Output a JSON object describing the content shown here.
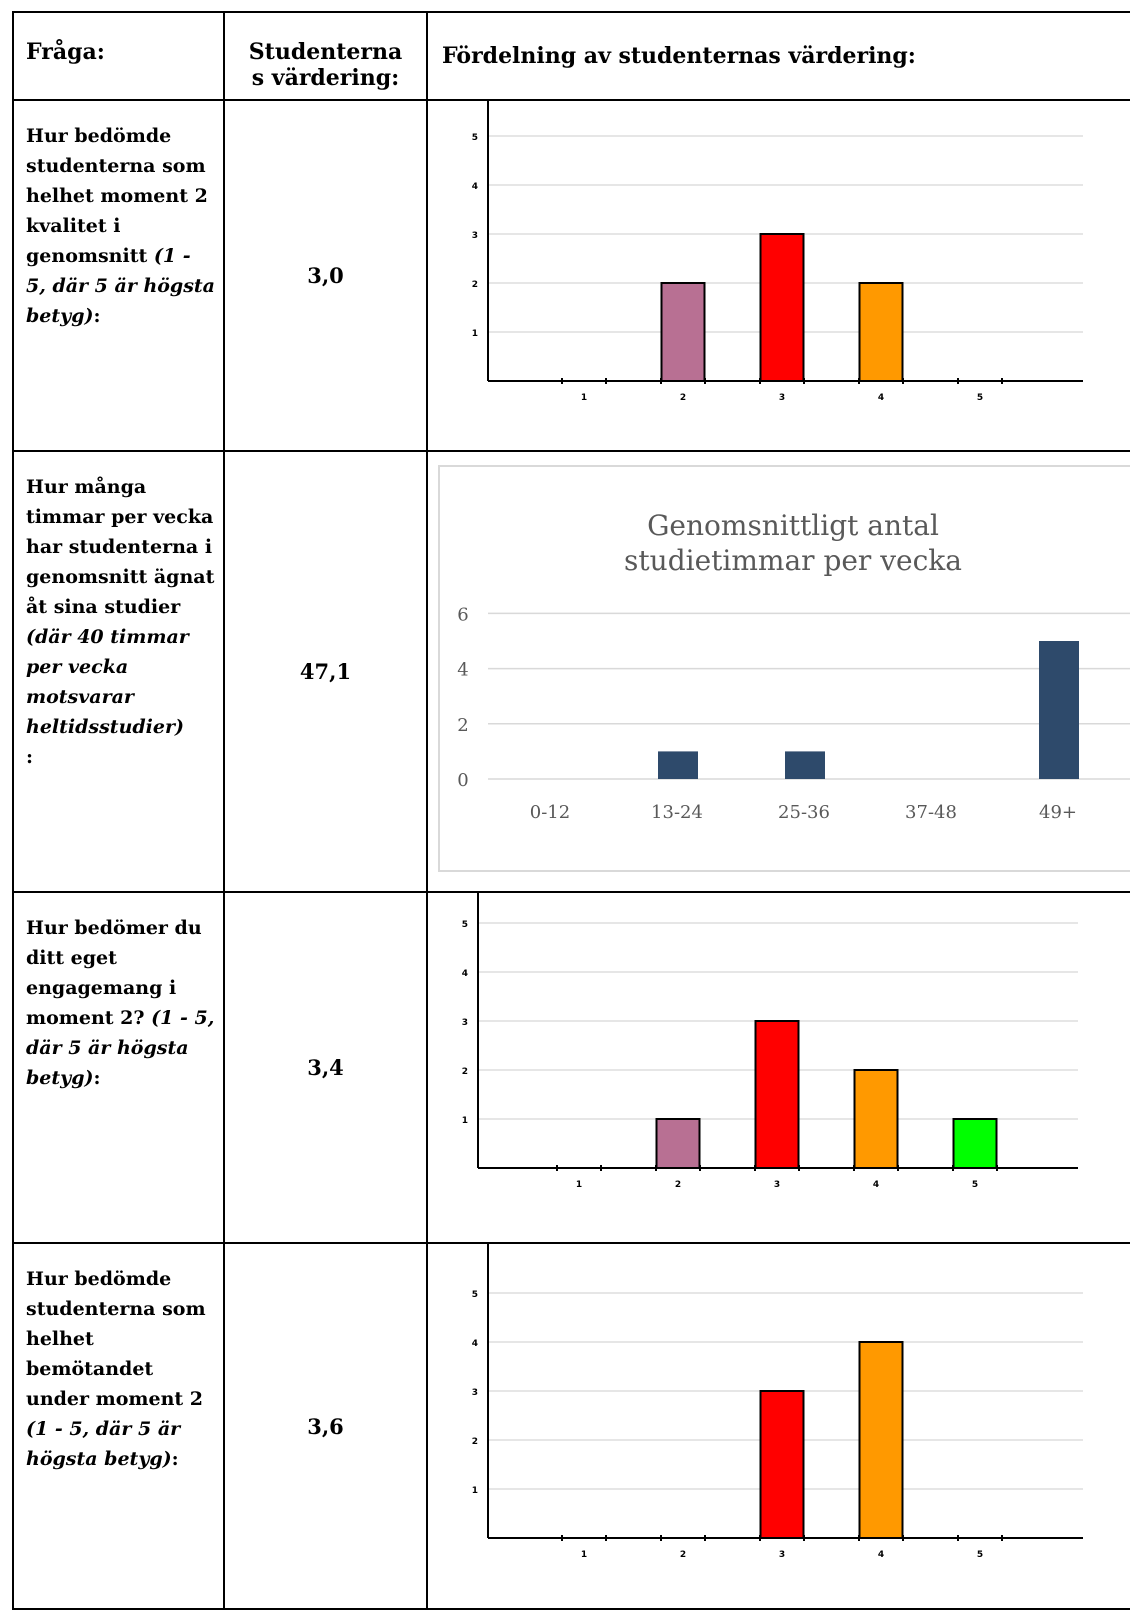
{
  "header": {
    "col_question": "Fråga:",
    "col_value_1": "Studenterna",
    "col_value_2": "s värdering:",
    "col_distribution": "Fördelning av studenternas värdering:"
  },
  "rows": [
    {
      "question_bold": "Hur bedömde studenterna som helhet moment 2 kvalitet i genomsnitt",
      "question_italic": "(1 - 5, där 5 är högsta betyg)",
      "question_end": ":",
      "value": "3,0"
    },
    {
      "question_bold": "Hur många timmar per vecka har studenterna i genomsnitt ägnat åt sina studier",
      "question_italic": "(där 40 timmar per vecka motsvarar heltidsstudier)",
      "question_end": ":",
      "value": "47,1"
    },
    {
      "question_bold": "Hur bedömer du ditt eget engagemang i moment 2?",
      "question_italic": "(1 - 5, där 5 är högsta betyg)",
      "question_end": ":",
      "value": "3,4"
    },
    {
      "question_bold": "Hur bedömde studenterna som helhet bemötandet under moment 2",
      "question_italic": "(1 - 5, där 5 är högsta betyg)",
      "question_end": ":",
      "value": "3,6"
    }
  ],
  "colors": {
    "grade_2": "#b87093",
    "grade_3": "#ff0000",
    "grade_4": "#ff9900",
    "grade_5": "#00ff00",
    "study_bar": "#2e4a6b",
    "grid": "#e6e6e6"
  },
  "chart_data": [
    {
      "type": "bar",
      "categories": [
        "1",
        "2",
        "3",
        "4",
        "5"
      ],
      "values": [
        0,
        2,
        3,
        2,
        0
      ],
      "ylim": [
        0,
        5
      ],
      "yticks": [
        "1",
        "2",
        "3",
        "4",
        "5"
      ],
      "grid": true
    },
    {
      "type": "bar",
      "title": "Genomsnittligt antal studietimmar per vecka",
      "categories": [
        "0-12",
        "13-24",
        "25-36",
        "37-48",
        "49+"
      ],
      "values": [
        0,
        1,
        1,
        0,
        5
      ],
      "ylim": [
        0,
        6
      ],
      "yticks": [
        "0",
        "2",
        "4",
        "6"
      ],
      "grid": true
    },
    {
      "type": "bar",
      "categories": [
        "1",
        "2",
        "3",
        "4",
        "5"
      ],
      "values": [
        0,
        1,
        3,
        2,
        1
      ],
      "ylim": [
        0,
        5
      ],
      "yticks": [
        "1",
        "2",
        "3",
        "4",
        "5"
      ],
      "grid": true
    },
    {
      "type": "bar",
      "categories": [
        "1",
        "2",
        "3",
        "4",
        "5"
      ],
      "values": [
        0,
        0,
        3,
        4,
        0
      ],
      "ylim": [
        0,
        5
      ],
      "yticks": [
        "1",
        "2",
        "3",
        "4",
        "5"
      ],
      "grid": true
    }
  ]
}
